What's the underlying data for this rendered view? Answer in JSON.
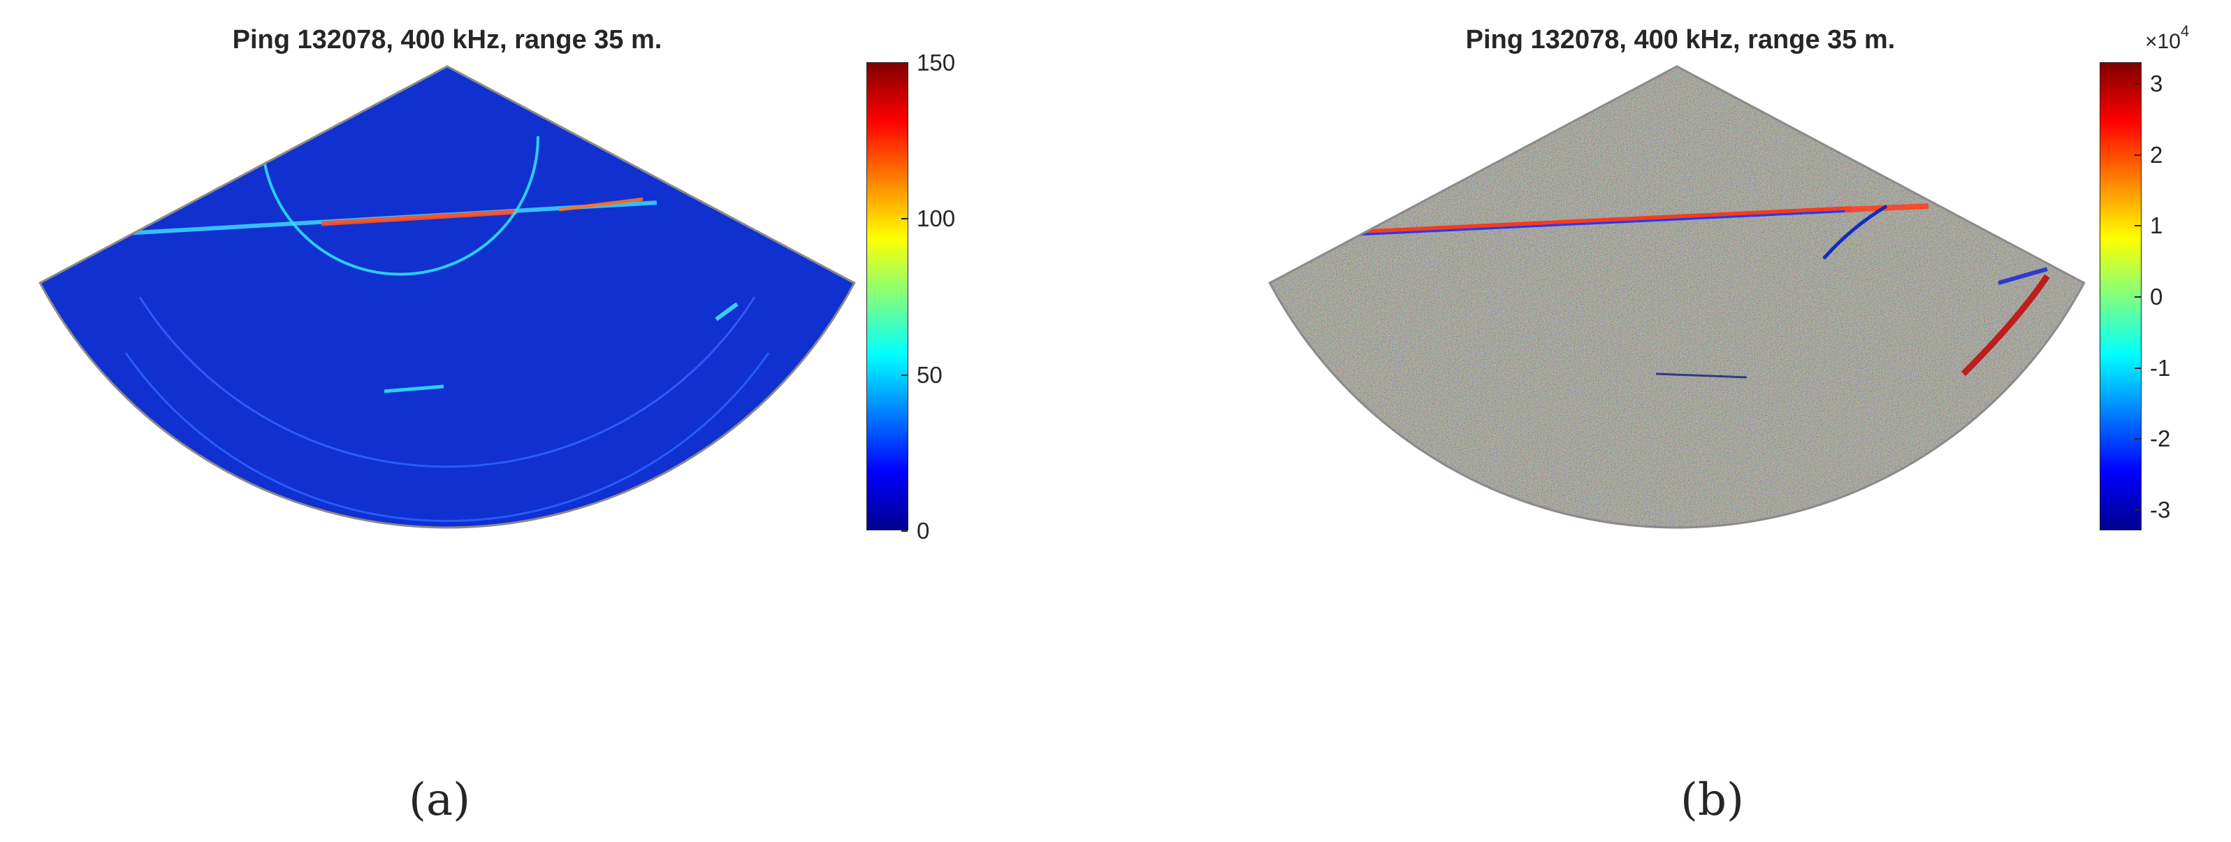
{
  "chart_data": [
    {
      "type": "heatmap",
      "title": "Ping 132078, 400 kHz, range 35 m.",
      "panel_label": "(a)",
      "colormap": "jet",
      "clim": [
        0,
        150
      ],
      "colorbar_ticks": [
        "0",
        "50",
        "100",
        "150"
      ],
      "colorbar_tick_values": [
        0,
        50,
        100,
        150
      ],
      "colorbar_exponent": "",
      "background": "#1030d0"
    },
    {
      "type": "heatmap",
      "title": "Ping 132078, 400 kHz, range 35 m.",
      "panel_label": "(b)",
      "colormap": "jet",
      "clim": [
        -3.3,
        3.3
      ],
      "colorbar_ticks": [
        "-3",
        "-2",
        "-1",
        "0",
        "1",
        "2",
        "3"
      ],
      "colorbar_tick_values": [
        -3,
        -2,
        -1,
        0,
        1,
        2,
        3
      ],
      "colorbar_exponent": "×10",
      "colorbar_exponent_power": "4",
      "background": "#8a8a7a"
    }
  ]
}
